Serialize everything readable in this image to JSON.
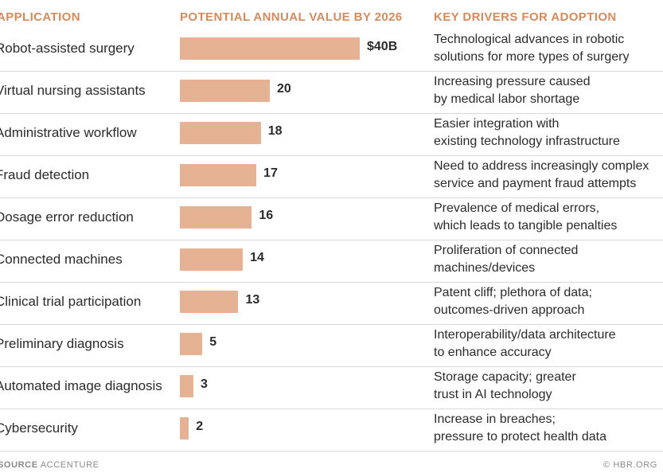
{
  "colors": {
    "header": "#d38b5d",
    "bar": "#e5b394",
    "text": "#2b2b2b",
    "rule": "#d9d9d9",
    "footer": "#8a8a8a"
  },
  "headers": {
    "application": "APPLICATION",
    "value": "POTENTIAL ANNUAL VALUE BY 2026",
    "drivers": "KEY DRIVERS FOR ADOPTION"
  },
  "chart_data": {
    "type": "bar",
    "orientation": "horizontal",
    "categories": [
      "Robot-assisted surgery",
      "Virtual nursing assistants",
      "Administrative workflow",
      "Fraud detection",
      "Dosage error reduction",
      "Connected machines",
      "Clinical trial participation",
      "Preliminary diagnosis",
      "Automated image diagnosis",
      "Cybersecurity"
    ],
    "values": [
      40,
      20,
      18,
      17,
      16,
      14,
      13,
      5,
      3,
      2
    ],
    "value_labels": [
      "$40B",
      "20",
      "18",
      "17",
      "16",
      "14",
      "13",
      "5",
      "3",
      "2"
    ],
    "drivers": [
      [
        "Technological advances in robotic",
        "solutions for more types of surgery"
      ],
      [
        "Increasing pressure caused",
        "by medical labor shortage"
      ],
      [
        "Easier integration with",
        "existing technology infrastructure"
      ],
      [
        "Need to address increasingly complex",
        "service and payment fraud attempts"
      ],
      [
        "Prevalence of medical errors,",
        "which leads to tangible penalties"
      ],
      [
        "Proliferation of connected",
        "machines/devices"
      ],
      [
        "Patent cliff; plethora of data;",
        "outcomes-driven approach"
      ],
      [
        "Interoperability/data architecture",
        "to enhance accuracy"
      ],
      [
        "Storage capacity; greater",
        "trust in AI technology"
      ],
      [
        "Increase in breaches;",
        "pressure to protect health data"
      ]
    ],
    "xlim": [
      0,
      40
    ],
    "grid": false
  },
  "footer": {
    "source_label": "SOURCE",
    "source": "ACCENTURE",
    "credit": "© HBR.ORG"
  }
}
